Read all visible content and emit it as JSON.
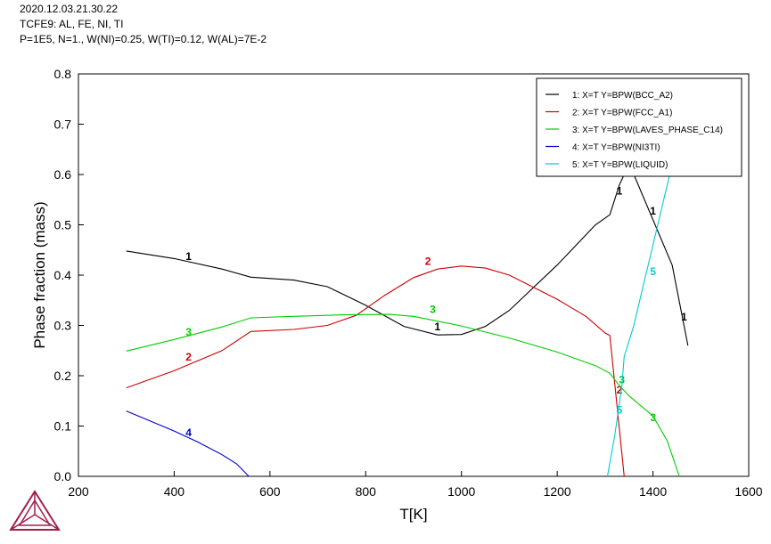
{
  "header": {
    "line1": "2020.12.03.21.30.22",
    "line2": "TCFE9: AL, FE, NI, TI",
    "line3": "P=1E5, N=1., W(NI)=0.25, W(TI)=0.12, W(AL)=7E-2"
  },
  "logo": {
    "icon": "thermo-calc-triangle-logo",
    "color": "#a0204a"
  },
  "chart_data": {
    "type": "line",
    "title": "",
    "xlabel": "T[K]",
    "ylabel": "Phase fraction (mass)",
    "xlim": [
      200,
      1600
    ],
    "ylim": [
      0,
      0.8
    ],
    "xticks": [
      200,
      400,
      600,
      800,
      1000,
      1200,
      1400,
      1600
    ],
    "yticks": [
      0.0,
      0.1,
      0.2,
      0.3,
      0.4,
      0.5,
      0.6,
      0.7,
      0.8
    ],
    "xtick_labels": [
      "200",
      "400",
      "600",
      "800",
      "1000",
      "1200",
      "1400",
      "1600"
    ],
    "ytick_labels": [
      "0.0",
      "0.1",
      "0.2",
      "0.3",
      "0.4",
      "0.5",
      "0.6",
      "0.7",
      "0.8"
    ],
    "grid": false,
    "legend_position": "top-right",
    "series": [
      {
        "id": "1",
        "legend": "1:  X=T  Y=BPW(BCC_A2)",
        "color": "#000000",
        "points": [
          [
            300,
            0.448
          ],
          [
            400,
            0.433
          ],
          [
            500,
            0.412
          ],
          [
            560,
            0.396
          ],
          [
            650,
            0.39
          ],
          [
            720,
            0.377
          ],
          [
            800,
            0.34
          ],
          [
            880,
            0.298
          ],
          [
            950,
            0.281
          ],
          [
            1000,
            0.282
          ],
          [
            1050,
            0.298
          ],
          [
            1100,
            0.33
          ],
          [
            1200,
            0.42
          ],
          [
            1280,
            0.5
          ],
          [
            1310,
            0.52
          ],
          [
            1330,
            0.58
          ],
          [
            1345,
            0.61
          ],
          [
            1360,
            0.6
          ],
          [
            1400,
            0.51
          ],
          [
            1440,
            0.42
          ],
          [
            1473,
            0.26
          ]
        ],
        "labels": [
          [
            430,
            0.43
          ],
          [
            1330,
            0.56
          ],
          [
            950,
            0.29
          ],
          [
            1400,
            0.52
          ],
          [
            1465,
            0.31
          ]
        ]
      },
      {
        "id": "2",
        "legend": "2:  X=T  Y=BPW(FCC_A1)",
        "color": "#cc0000",
        "points": [
          [
            300,
            0.176
          ],
          [
            400,
            0.21
          ],
          [
            500,
            0.25
          ],
          [
            560,
            0.288
          ],
          [
            650,
            0.292
          ],
          [
            720,
            0.3
          ],
          [
            780,
            0.32
          ],
          [
            840,
            0.36
          ],
          [
            900,
            0.395
          ],
          [
            950,
            0.412
          ],
          [
            1000,
            0.418
          ],
          [
            1050,
            0.414
          ],
          [
            1100,
            0.4
          ],
          [
            1200,
            0.352
          ],
          [
            1260,
            0.318
          ],
          [
            1300,
            0.285
          ],
          [
            1310,
            0.28
          ],
          [
            1340,
            0.0
          ]
        ],
        "labels": [
          [
            430,
            0.23
          ],
          [
            930,
            0.42
          ],
          [
            1330,
            0.165
          ]
        ]
      },
      {
        "id": "3",
        "legend": "3:  X=T  Y=BPW(LAVES_PHASE_C14)",
        "color": "#00cc00",
        "points": [
          [
            300,
            0.249
          ],
          [
            400,
            0.272
          ],
          [
            500,
            0.297
          ],
          [
            560,
            0.315
          ],
          [
            650,
            0.318
          ],
          [
            750,
            0.321
          ],
          [
            850,
            0.322
          ],
          [
            900,
            0.318
          ],
          [
            1000,
            0.299
          ],
          [
            1100,
            0.275
          ],
          [
            1200,
            0.247
          ],
          [
            1280,
            0.22
          ],
          [
            1310,
            0.205
          ],
          [
            1330,
            0.18
          ],
          [
            1350,
            0.16
          ],
          [
            1400,
            0.12
          ],
          [
            1430,
            0.07
          ],
          [
            1455,
            0.0
          ]
        ],
        "labels": [
          [
            430,
            0.28
          ],
          [
            940,
            0.325
          ],
          [
            1335,
            0.185
          ],
          [
            1400,
            0.11
          ]
        ]
      },
      {
        "id": "4",
        "legend": "4:  X=T  Y=BPW(NI3TI)",
        "color": "#0000cc",
        "points": [
          [
            300,
            0.13
          ],
          [
            350,
            0.11
          ],
          [
            400,
            0.09
          ],
          [
            450,
            0.068
          ],
          [
            500,
            0.043
          ],
          [
            530,
            0.025
          ],
          [
            556,
            0.0
          ]
        ],
        "labels": [
          [
            430,
            0.08
          ]
        ]
      },
      {
        "id": "5",
        "legend": "5:  X=T  Y=BPW(LIQUID)",
        "color": "#00cccc",
        "points": [
          [
            1305,
            0.0
          ],
          [
            1320,
            0.08
          ],
          [
            1335,
            0.18
          ],
          [
            1340,
            0.238
          ],
          [
            1360,
            0.3
          ],
          [
            1380,
            0.38
          ],
          [
            1400,
            0.46
          ],
          [
            1420,
            0.54
          ],
          [
            1440,
            0.62
          ],
          [
            1445,
            0.64
          ]
        ],
        "labels": [
          [
            1400,
            0.4
          ],
          [
            1330,
            0.125
          ]
        ]
      }
    ]
  }
}
